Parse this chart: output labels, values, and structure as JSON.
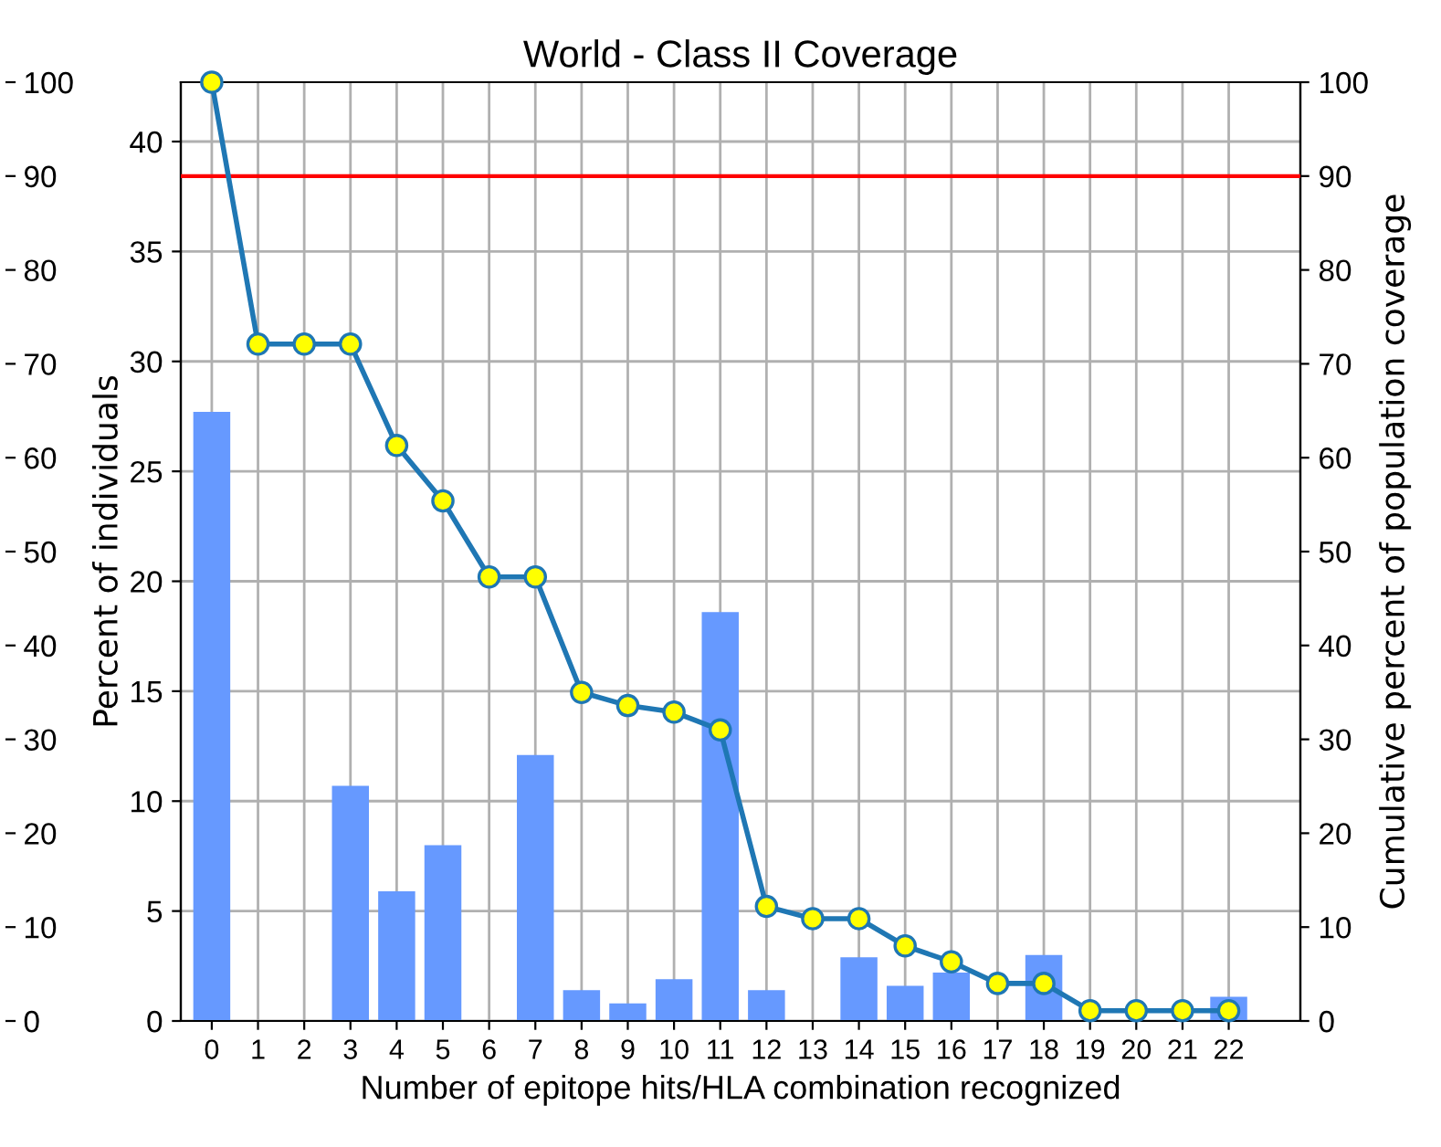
{
  "chart_data": {
    "type": "bar",
    "title": "World - Class II Coverage",
    "xlabel": "Number of epitope hits/HLA combination recognized",
    "ylabel": "Percent of individuals",
    "y2label": "Cumulative percent of population coverage",
    "x": [
      0,
      1,
      2,
      3,
      4,
      5,
      6,
      7,
      8,
      9,
      10,
      11,
      12,
      13,
      14,
      15,
      16,
      17,
      18,
      19,
      20,
      21,
      22
    ],
    "xlim": [
      -0.67,
      23.55
    ],
    "xticks": [
      0,
      1,
      2,
      3,
      4,
      5,
      6,
      7,
      8,
      9,
      10,
      11,
      12,
      13,
      14,
      15,
      16,
      17,
      18,
      19,
      20,
      21,
      22
    ],
    "ylim": [
      0,
      42.7
    ],
    "yticks": [
      0,
      5,
      10,
      15,
      20,
      25,
      30,
      35,
      40
    ],
    "y2lim": [
      0,
      100
    ],
    "y2ticks": [
      0,
      10,
      20,
      30,
      40,
      50,
      60,
      70,
      80,
      90,
      100
    ],
    "y3lim": [
      0,
      100
    ],
    "y3ticks": [
      0,
      10,
      20,
      30,
      40,
      50,
      60,
      70,
      80,
      90,
      100
    ],
    "series": [
      {
        "type": "bar",
        "color": "#6699ff",
        "values": [
          27.7,
          0,
          0,
          10.7,
          5.9,
          8.0,
          0,
          12.1,
          1.4,
          0.8,
          1.9,
          18.6,
          1.4,
          0,
          2.9,
          1.6,
          2.2,
          0,
          3.0,
          0,
          0,
          0,
          1.1
        ]
      },
      {
        "type": "line",
        "axis": "y2",
        "color": "#1f77b4",
        "marker": "circle",
        "values": [
          100,
          72.1,
          72.1,
          72.1,
          61.3,
          55.4,
          47.3,
          47.3,
          35.0,
          33.6,
          32.9,
          31.0,
          12.2,
          10.9,
          10.9,
          8.0,
          6.3,
          4.0,
          4.0,
          1.1,
          1.1,
          1.1,
          1.1
        ]
      }
    ],
    "ref_lines": [
      {
        "axis": "y2",
        "value": 90,
        "color": "#ff0000"
      }
    ],
    "grid": true
  }
}
